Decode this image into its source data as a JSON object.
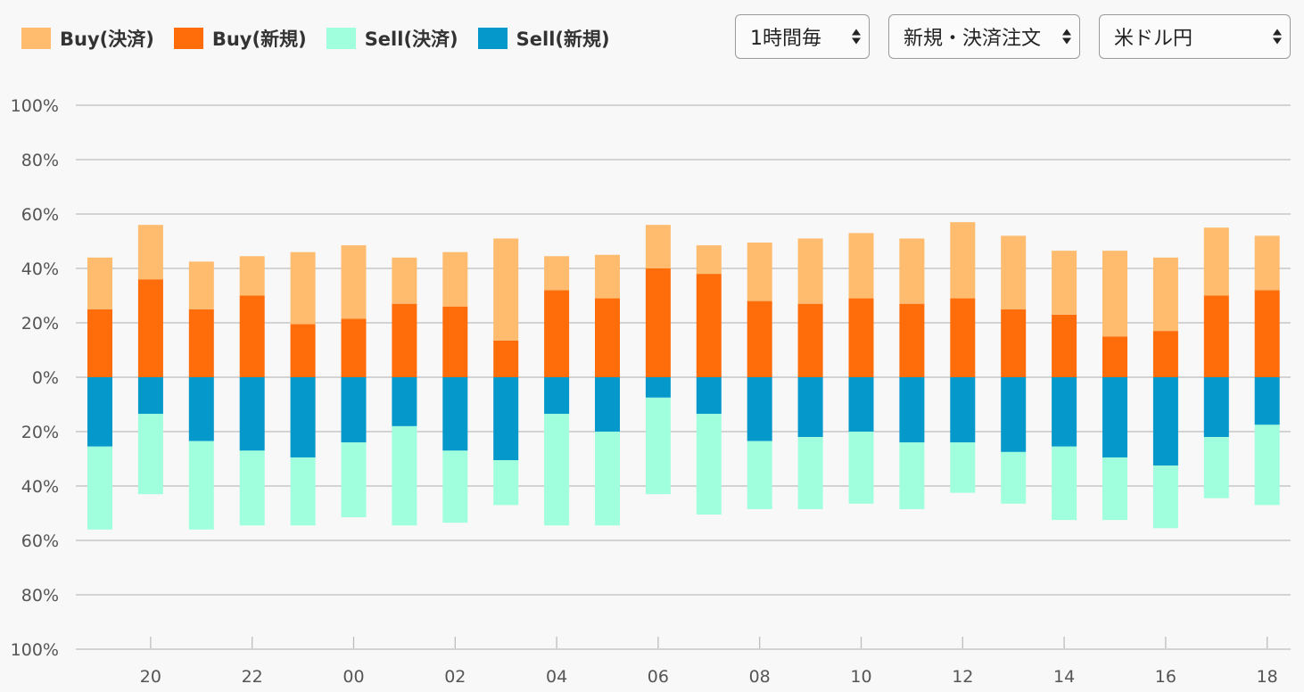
{
  "legend": [
    {
      "label": "Buy(決済)",
      "color": "#ffbb6e"
    },
    {
      "label": "Buy(新規)",
      "color": "#ff6d0a"
    },
    {
      "label": "Sell(決済)",
      "color": "#a0ffdc"
    },
    {
      "label": "Sell(新規)",
      "color": "#0598cb"
    }
  ],
  "controls": {
    "interval": "1時間毎",
    "order_type": "新規・決済注文",
    "currency_pair": "米ドル円"
  },
  "chart_data": {
    "type": "bar",
    "stacked": true,
    "diverging": true,
    "y_tick_labels": [
      "100%",
      "80%",
      "60%",
      "40%",
      "20%",
      "0%",
      "20%",
      "40%",
      "60%",
      "80%",
      "100%"
    ],
    "ylim": [
      -100,
      100
    ],
    "x_tick_labels": [
      "20",
      "22",
      "00",
      "02",
      "04",
      "06",
      "08",
      "10",
      "12",
      "14",
      "16",
      "18"
    ],
    "categories": [
      "19",
      "20",
      "21",
      "22",
      "23",
      "00",
      "01",
      "02",
      "03",
      "04",
      "05",
      "06",
      "07",
      "08",
      "09",
      "10",
      "11",
      "12",
      "13",
      "14",
      "15",
      "16",
      "17",
      "18"
    ],
    "grid": true,
    "series": [
      {
        "name": "Buy(新規)",
        "values": [
          25,
          36,
          25,
          30,
          19.5,
          21.5,
          27,
          26,
          13.5,
          32,
          29,
          40,
          38,
          28,
          27,
          29,
          27,
          29,
          25,
          23,
          15,
          17,
          30,
          32
        ]
      },
      {
        "name": "Buy(決済)",
        "values": [
          19,
          20,
          17.5,
          14.5,
          26.5,
          27,
          17,
          20,
          37.5,
          12.5,
          16,
          16,
          10.5,
          21.5,
          24,
          24,
          24,
          28,
          27,
          23.5,
          31.5,
          27,
          25,
          20
        ]
      },
      {
        "name": "Sell(新規)",
        "values": [
          -25.5,
          -13.5,
          -23.5,
          -27,
          -29.5,
          -24,
          -18,
          -27,
          -30.5,
          -13.5,
          -20,
          -7.5,
          -13.5,
          -23.5,
          -22,
          -20,
          -24,
          -24,
          -27.5,
          -25.5,
          -29.5,
          -32.5,
          -22,
          -17.5
        ]
      },
      {
        "name": "Sell(決済)",
        "values": [
          -30.5,
          -29.5,
          -32.5,
          -27.5,
          -25,
          -27.5,
          -36.5,
          -26.5,
          -16.5,
          -41,
          -34.5,
          -35.5,
          -37,
          -25,
          -26.5,
          -26.5,
          -24.5,
          -18.5,
          -19,
          -27,
          -23,
          -23,
          -22.5,
          -29.5
        ]
      }
    ]
  }
}
